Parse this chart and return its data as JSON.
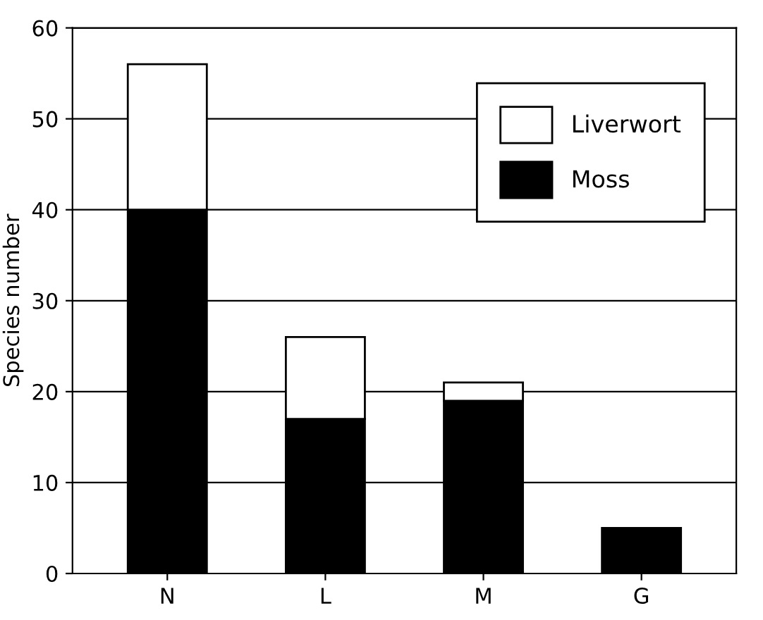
{
  "chart_data": {
    "type": "bar",
    "stacked": true,
    "ylabel": "Species number",
    "categories": [
      "N",
      "L",
      "M",
      "G"
    ],
    "series": [
      {
        "name": "Moss",
        "color": "#000000",
        "values": [
          40,
          17,
          19,
          5
        ]
      },
      {
        "name": "Liverwort",
        "color": "#ffffff",
        "values": [
          16,
          9,
          2,
          null
        ]
      }
    ],
    "ylim": [
      0,
      60
    ],
    "yticks": [
      0,
      10,
      20,
      30,
      40,
      50,
      60
    ],
    "grid": "y",
    "legend": "top right"
  }
}
